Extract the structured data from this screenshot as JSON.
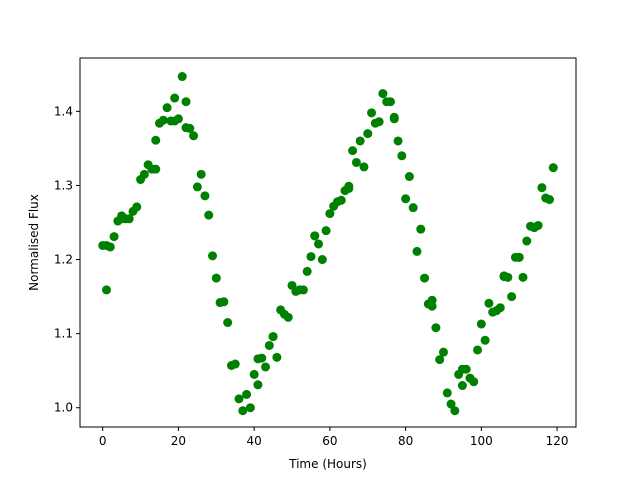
{
  "chart_data": {
    "type": "scatter",
    "title": "",
    "xlabel": "Time (Hours)",
    "ylabel": "Normalised Flux",
    "xlim": [
      -6,
      125
    ],
    "ylim": [
      0.974,
      1.472
    ],
    "xticks": [
      0,
      20,
      40,
      60,
      80,
      100,
      120
    ],
    "yticks": [
      1.0,
      1.1,
      1.2,
      1.3,
      1.4
    ],
    "ytick_labels": [
      "1.0",
      "1.1",
      "1.2",
      "1.3",
      "1.4"
    ],
    "grid": false,
    "legend": "none",
    "marker_color": "#008000",
    "series": [
      {
        "x": [
          0,
          1,
          2,
          3,
          4,
          5,
          6,
          7,
          8,
          9,
          10,
          11,
          12,
          13,
          14,
          15,
          16,
          17,
          18,
          19,
          20,
          21,
          22,
          23,
          24,
          25,
          26,
          27,
          28,
          29,
          30,
          31,
          32,
          33,
          34,
          35,
          36,
          37,
          38,
          39,
          40,
          41,
          42,
          43,
          44,
          45,
          46,
          47,
          48,
          49,
          50,
          51,
          52,
          53,
          54,
          55,
          56,
          57,
          58,
          59,
          60,
          61,
          62,
          63,
          64,
          65,
          66,
          67,
          68,
          69,
          70,
          71,
          72,
          73,
          74,
          75,
          76,
          77,
          78,
          79,
          80,
          81,
          82,
          83,
          84,
          85,
          86,
          87,
          88,
          89,
          90,
          91,
          92,
          93,
          94,
          95,
          96,
          97,
          98,
          99,
          100,
          101,
          102,
          103,
          104,
          105,
          106,
          107,
          108,
          109,
          110,
          111,
          112,
          113,
          114,
          115,
          116,
          117,
          118,
          119,
          1,
          5,
          14,
          19,
          22,
          41,
          45,
          56,
          65,
          77,
          87,
          95,
          106,
          110
        ],
        "y": [
          1.219,
          1.159,
          1.217,
          1.231,
          1.252,
          1.259,
          1.255,
          1.255,
          1.265,
          1.271,
          1.308,
          1.315,
          1.328,
          1.322,
          1.361,
          1.384,
          1.388,
          1.405,
          1.387,
          1.418,
          1.39,
          1.447,
          1.413,
          1.377,
          1.367,
          1.298,
          1.315,
          1.286,
          1.26,
          1.205,
          1.175,
          1.142,
          1.143,
          1.115,
          1.057,
          1.059,
          1.012,
          0.996,
          1.018,
          1.0,
          1.045,
          1.031,
          1.067,
          1.055,
          1.084,
          1.096,
          1.068,
          1.132,
          1.126,
          1.122,
          1.165,
          1.157,
          1.159,
          1.159,
          1.184,
          1.204,
          1.232,
          1.221,
          1.2,
          1.239,
          1.262,
          1.272,
          1.278,
          1.28,
          1.293,
          1.296,
          1.347,
          1.331,
          1.36,
          1.325,
          1.37,
          1.398,
          1.384,
          1.386,
          1.424,
          1.413,
          1.413,
          1.392,
          1.36,
          1.34,
          1.282,
          1.312,
          1.27,
          1.211,
          1.241,
          1.175,
          1.14,
          1.145,
          1.108,
          1.065,
          1.075,
          1.02,
          1.005,
          0.996,
          1.045,
          1.03,
          1.052,
          1.04,
          1.035,
          1.078,
          1.113,
          1.091,
          1.141,
          1.129,
          1.131,
          1.135,
          1.177,
          1.176,
          1.15,
          1.203,
          1.203,
          1.176,
          1.225,
          1.245,
          1.243,
          1.246,
          1.297,
          1.283,
          1.281,
          1.324,
          1.219,
          1.255,
          1.322,
          1.387,
          1.378,
          1.066,
          1.096,
          1.232,
          1.299,
          1.39,
          1.137,
          1.052,
          1.178,
          1.203
        ]
      }
    ]
  }
}
